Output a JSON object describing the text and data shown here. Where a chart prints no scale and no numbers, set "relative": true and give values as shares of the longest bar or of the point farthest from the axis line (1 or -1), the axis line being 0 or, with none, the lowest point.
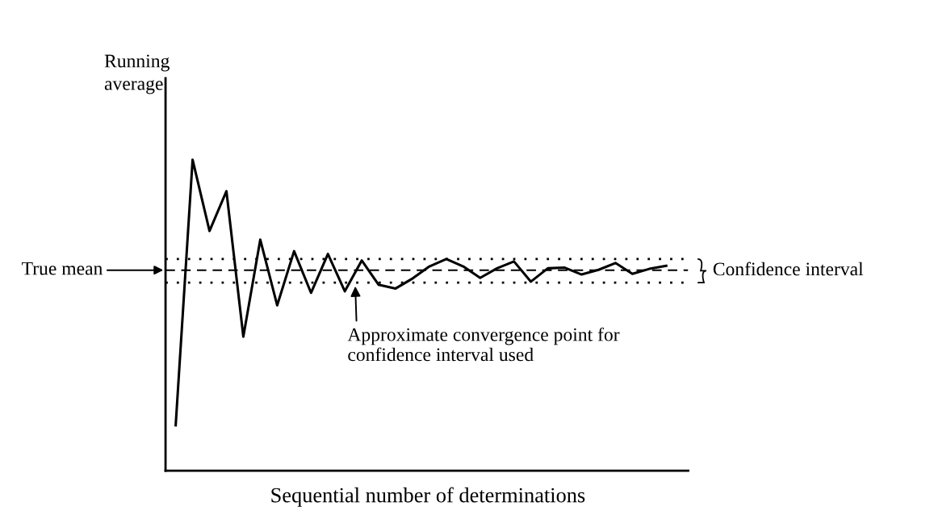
{
  "chart_data": {
    "type": "line",
    "relative": true,
    "xlabel": "Sequential number of determinations",
    "categories": [
      null,
      null,
      null,
      null,
      null,
      null,
      null,
      null,
      null,
      null,
      null,
      null,
      null,
      null,
      null,
      null,
      null,
      null,
      null,
      null,
      null,
      null,
      null,
      null,
      null,
      null,
      null,
      null,
      null,
      null
    ],
    "series": [
      {
        "color": "#000000",
        "values": [
          0.146,
          1,
          0.771,
          0.899,
          0.431,
          0.743,
          0.532,
          0.706,
          0.572,
          0.697,
          0.577,
          0.676,
          0.598,
          0.586,
          0.618,
          0.657,
          0.681,
          0.657,
          0.62,
          0.651,
          0.673,
          0.608,
          0.651,
          0.653,
          0.631,
          0.646,
          0.668,
          0.633,
          0.649,
          0.659
        ]
      }
    ],
    "ref_lines": [
      {
        "axis": "y",
        "value": 0.645,
        "label": "True mean",
        "line_style": "dashed",
        "color": "#000000"
      },
      {
        "axis": "y",
        "value": 0.681,
        "line_style": "dotted",
        "color": "#000000"
      },
      {
        "axis": "y",
        "value": 0.605,
        "line_style": "dotted",
        "color": "#000000"
      }
    ],
    "annotations": [
      "Running\naverage",
      "Approximate convergence point for\nconfidence interval used",
      "Confidence interval"
    ],
    "marker": "none",
    "line_style": "solid"
  }
}
